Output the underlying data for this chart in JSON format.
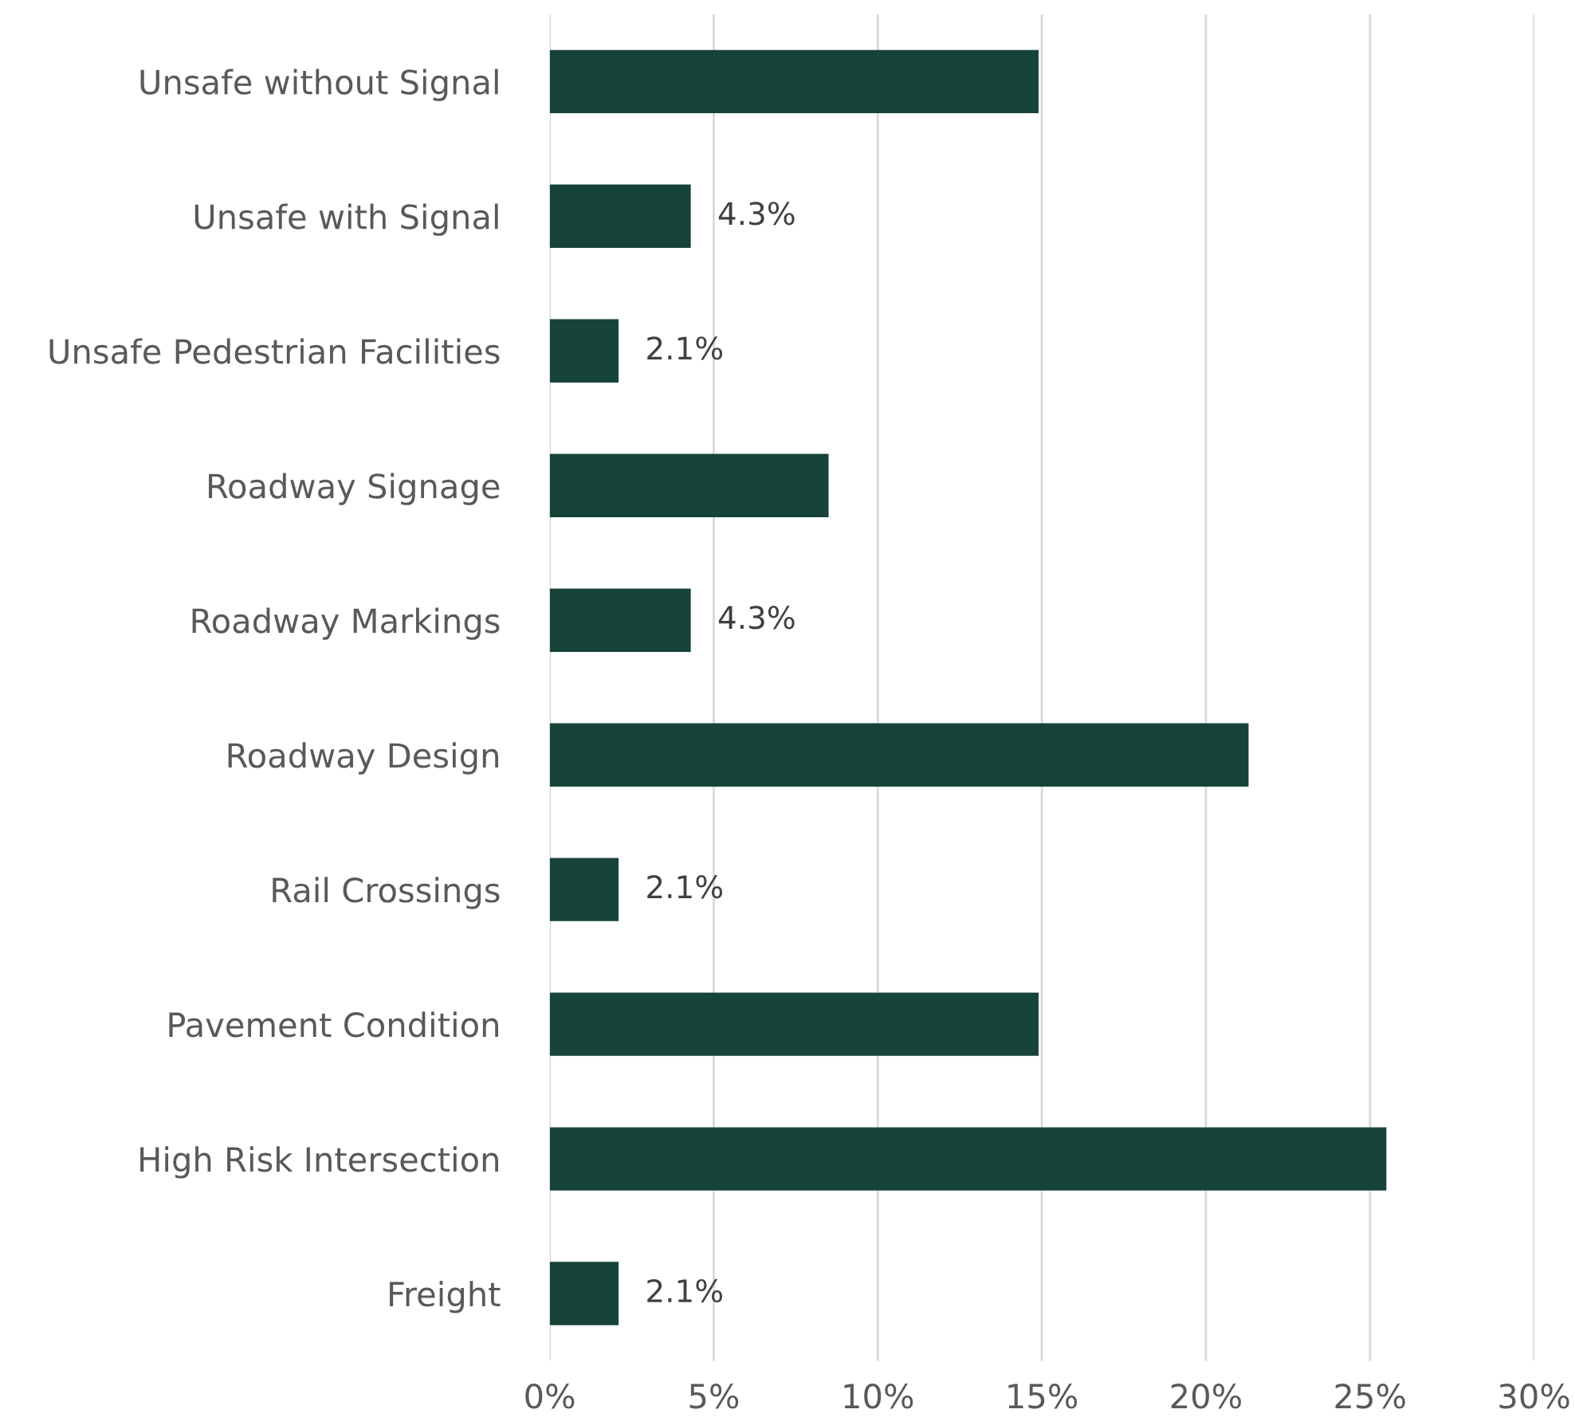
{
  "chart_data": {
    "type": "bar",
    "orientation": "horizontal",
    "categories": [
      "Unsafe without Signal",
      "Unsafe with Signal",
      "Unsafe Pedestrian Facilities",
      "Roadway Signage",
      "Roadway Markings",
      "Roadway Design",
      "Rail Crossings",
      "Pavement Condition",
      "High Risk Intersection",
      "Freight"
    ],
    "values": [
      14.9,
      4.3,
      2.1,
      8.5,
      4.3,
      21.3,
      2.1,
      14.9,
      25.5,
      2.1
    ],
    "value_labels": [
      null,
      "4.3%",
      "2.1%",
      null,
      "4.3%",
      null,
      "2.1%",
      null,
      null,
      "2.1%"
    ],
    "color": "#16433a",
    "xlim": [
      0,
      30
    ],
    "xticks": [
      {
        "value": 0,
        "label": "0%"
      },
      {
        "value": 5,
        "label": "5%"
      },
      {
        "value": 10,
        "label": "10%"
      },
      {
        "value": 15,
        "label": "15%"
      },
      {
        "value": 20,
        "label": "20%"
      },
      {
        "value": 25,
        "label": "25%"
      },
      {
        "value": 30,
        "label": "30%"
      }
    ],
    "grid": "x"
  }
}
